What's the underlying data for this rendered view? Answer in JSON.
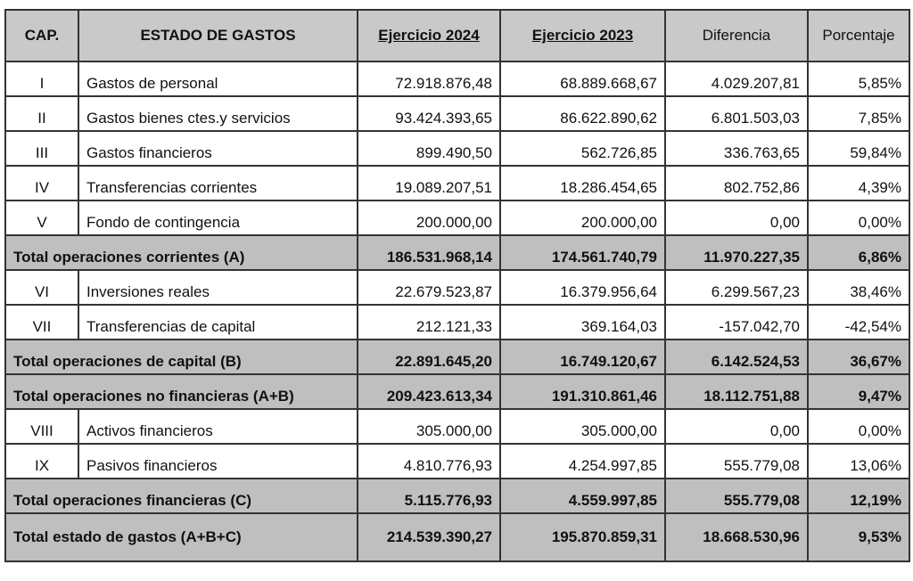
{
  "headers": {
    "cap": "CAP.",
    "concept": "ESTADO DE GASTOS",
    "y2024": "Ejercicio 2024",
    "y2023": "Ejercicio 2023",
    "diff": "Diferencia",
    "pct": "Porcentaje"
  },
  "rows": [
    {
      "cap": "I",
      "concept": "Gastos de personal",
      "y2024": "72.918.876,48",
      "y2023": "68.889.668,67",
      "diff": "4.029.207,81",
      "pct": "5,85%"
    },
    {
      "cap": "II",
      "concept": "Gastos bienes ctes.y servicios",
      "y2024": "93.424.393,65",
      "y2023": "86.622.890,62",
      "diff": "6.801.503,03",
      "pct": "7,85%"
    },
    {
      "cap": "III",
      "concept": "Gastos financieros",
      "y2024": "899.490,50",
      "y2023": "562.726,85",
      "diff": "336.763,65",
      "pct": "59,84%"
    },
    {
      "cap": "IV",
      "concept": "Transferencias corrientes",
      "y2024": "19.089.207,51",
      "y2023": "18.286.454,65",
      "diff": "802.752,86",
      "pct": "4,39%"
    },
    {
      "cap": "V",
      "concept": "Fondo de contingencia",
      "y2024": "200.000,00",
      "y2023": "200.000,00",
      "diff": "0,00",
      "pct": "0,00%"
    },
    {
      "total": true,
      "concept": "Total operaciones corrientes (A)",
      "y2024": "186.531.968,14",
      "y2023": "174.561.740,79",
      "diff": "11.970.227,35",
      "pct": "6,86%"
    },
    {
      "cap": "VI",
      "concept": "Inversiones reales",
      "y2024": "22.679.523,87",
      "y2023": "16.379.956,64",
      "diff": "6.299.567,23",
      "pct": "38,46%"
    },
    {
      "cap": "VII",
      "concept": "Transferencias de capital",
      "y2024": "212.121,33",
      "y2023": "369.164,03",
      "diff": "-157.042,70",
      "pct": "-42,54%"
    },
    {
      "total": true,
      "concept": "Total operaciones de capital (B)",
      "y2024": "22.891.645,20",
      "y2023": "16.749.120,67",
      "diff": "6.142.524,53",
      "pct": "36,67%"
    },
    {
      "total": true,
      "concept": "Total operaciones no financieras (A+B)",
      "y2024": "209.423.613,34",
      "y2023": "191.310.861,46",
      "diff": "18.112.751,88",
      "pct": "9,47%"
    },
    {
      "cap": "VIII",
      "concept": "Activos financieros",
      "y2024": "305.000,00",
      "y2023": "305.000,00",
      "diff": "0,00",
      "pct": "0,00%"
    },
    {
      "cap": "IX",
      "concept": "Pasivos financieros",
      "y2024": "4.810.776,93",
      "y2023": "4.254.997,85",
      "diff": "555.779,08",
      "pct": "13,06%"
    },
    {
      "total": true,
      "concept": "Total operaciones financieras (C)",
      "y2024": "5.115.776,93",
      "y2023": "4.559.997,85",
      "diff": "555.779,08",
      "pct": "12,19%"
    },
    {
      "total": true,
      "grand": true,
      "concept": "Total estado de gastos (A+B+C)",
      "y2024": "214.539.390,27",
      "y2023": "195.870.859,31",
      "diff": "18.668.530,96",
      "pct": "9,53%"
    }
  ]
}
